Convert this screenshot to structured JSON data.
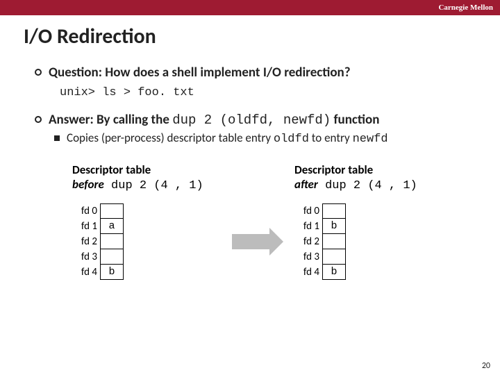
{
  "header": {
    "brand": "Carnegie Mellon"
  },
  "title": "I/O Redirection",
  "bullets": {
    "q": "Question: How does a shell implement I/O redirection?",
    "code": "unix> ls > foo. txt",
    "a_pre": "Answer: By calling the ",
    "a_code": "dup 2 (oldfd, newfd)",
    "a_post": " function",
    "sub_pre": "Copies (per-process) descriptor table entry ",
    "sub_c1": "oldfd",
    "sub_mid": " to entry ",
    "sub_c2": "newfd"
  },
  "tables": {
    "before": {
      "title_pre": "Descriptor table",
      "state": "before",
      "call": " dup 2 (4 , 1)",
      "rows": [
        {
          "label": "fd 0",
          "val": ""
        },
        {
          "label": "fd 1",
          "val": "a"
        },
        {
          "label": "fd 2",
          "val": ""
        },
        {
          "label": "fd 3",
          "val": ""
        },
        {
          "label": "fd 4",
          "val": "b"
        }
      ]
    },
    "after": {
      "title_pre": "Descriptor table",
      "state": "after",
      "call": " dup 2 (4 , 1)",
      "rows": [
        {
          "label": "fd 0",
          "val": ""
        },
        {
          "label": "fd 1",
          "val": "b"
        },
        {
          "label": "fd 2",
          "val": ""
        },
        {
          "label": "fd 3",
          "val": ""
        },
        {
          "label": "fd 4",
          "val": "b"
        }
      ]
    }
  },
  "page_number": "20",
  "colors": {
    "brand_bg": "#9e1b32",
    "arrow": "#bcbcbc",
    "text": "#222222"
  }
}
